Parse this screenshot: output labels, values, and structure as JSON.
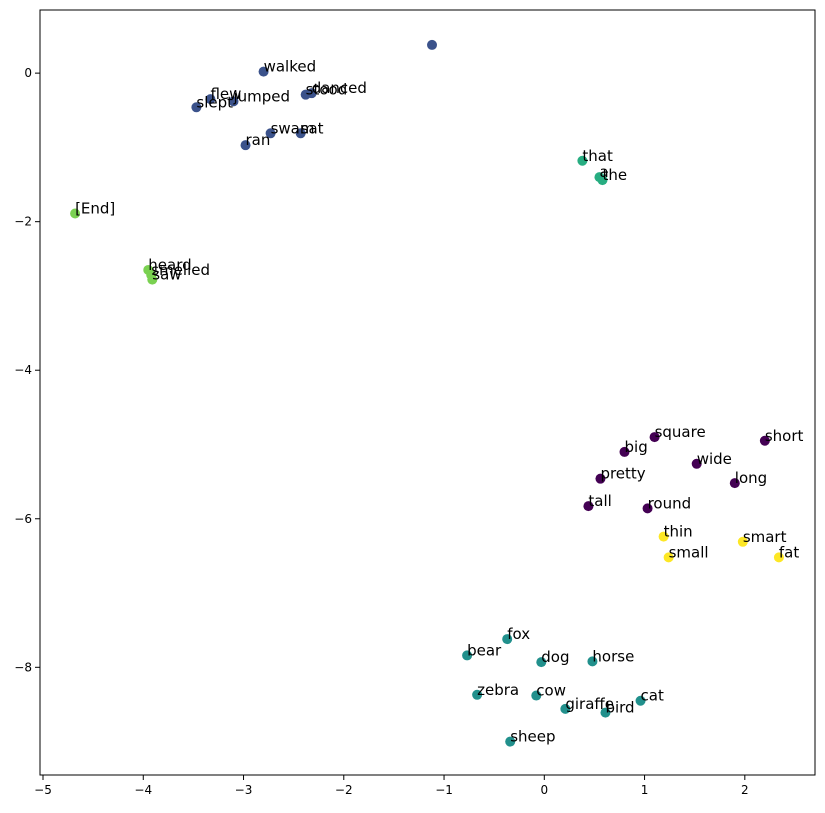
{
  "chart_data": {
    "type": "scatter",
    "title": "",
    "xlabel": "",
    "ylabel": "",
    "xlim": [
      -5.03,
      2.7
    ],
    "ylim": [
      -9.45,
      0.85
    ],
    "xticks": [
      -5,
      -4,
      -3,
      -2,
      -1,
      0,
      1,
      2
    ],
    "yticks": [
      -8,
      -6,
      -4,
      -2,
      0
    ],
    "xtick_labels": [
      "−5",
      "−4",
      "−3",
      "−2",
      "−1",
      "0",
      "1",
      "2"
    ],
    "ytick_labels": [
      "−8",
      "−6",
      "−4",
      "−2",
      "0"
    ],
    "grid": false,
    "legend": "none",
    "colors": {
      "cluster_adjective": "#440154",
      "cluster_verb": "#3b528b",
      "cluster_animal": "#21908c",
      "cluster_article": "#27ad81",
      "cluster_end": "#7ad151",
      "cluster_size": "#fde725"
    },
    "points": [
      {
        "label": "",
        "x": -1.12,
        "y": 0.38,
        "cluster": "cluster_verb"
      },
      {
        "label": "walked",
        "x": -2.8,
        "y": 0.02,
        "cluster": "cluster_verb"
      },
      {
        "label": "flew",
        "x": -3.33,
        "y": -0.35,
        "cluster": "cluster_verb"
      },
      {
        "label": "jumped",
        "x": -3.1,
        "y": -0.38,
        "cluster": "cluster_verb"
      },
      {
        "label": "slept",
        "x": -3.47,
        "y": -0.46,
        "cluster": "cluster_verb"
      },
      {
        "label": "stood",
        "x": -2.38,
        "y": -0.29,
        "cluster": "cluster_verb"
      },
      {
        "label": "danced",
        "x": -2.32,
        "y": -0.27,
        "cluster": "cluster_verb"
      },
      {
        "label": "swam",
        "x": -2.73,
        "y": -0.81,
        "cluster": "cluster_verb"
      },
      {
        "label": "sat",
        "x": -2.43,
        "y": -0.81,
        "cluster": "cluster_verb"
      },
      {
        "label": "ran",
        "x": -2.98,
        "y": -0.97,
        "cluster": "cluster_verb"
      },
      {
        "label": "that",
        "x": 0.38,
        "y": -1.18,
        "cluster": "cluster_article"
      },
      {
        "label": "a",
        "x": 0.55,
        "y": -1.4,
        "cluster": "cluster_article"
      },
      {
        "label": "the",
        "x": 0.58,
        "y": -1.44,
        "cluster": "cluster_article"
      },
      {
        "label": "[End]",
        "x": -4.68,
        "y": -1.89,
        "cluster": "cluster_end"
      },
      {
        "label": "heard",
        "x": -3.95,
        "y": -2.65,
        "cluster": "cluster_end"
      },
      {
        "label": "smelled",
        "x": -3.92,
        "y": -2.72,
        "cluster": "cluster_end"
      },
      {
        "label": "saw",
        "x": -3.91,
        "y": -2.78,
        "cluster": "cluster_end"
      },
      {
        "label": "square",
        "x": 1.1,
        "y": -4.9,
        "cluster": "cluster_adjective"
      },
      {
        "label": "short",
        "x": 2.2,
        "y": -4.95,
        "cluster": "cluster_adjective"
      },
      {
        "label": "big",
        "x": 0.8,
        "y": -5.1,
        "cluster": "cluster_adjective"
      },
      {
        "label": "wide",
        "x": 1.52,
        "y": -5.26,
        "cluster": "cluster_adjective"
      },
      {
        "label": "pretty",
        "x": 0.56,
        "y": -5.46,
        "cluster": "cluster_adjective"
      },
      {
        "label": "long",
        "x": 1.9,
        "y": -5.52,
        "cluster": "cluster_adjective"
      },
      {
        "label": "tall",
        "x": 0.44,
        "y": -5.83,
        "cluster": "cluster_adjective"
      },
      {
        "label": "round",
        "x": 1.03,
        "y": -5.86,
        "cluster": "cluster_adjective"
      },
      {
        "label": "thin",
        "x": 1.19,
        "y": -6.24,
        "cluster": "cluster_size"
      },
      {
        "label": "smart",
        "x": 1.98,
        "y": -6.31,
        "cluster": "cluster_size"
      },
      {
        "label": "small",
        "x": 1.24,
        "y": -6.52,
        "cluster": "cluster_size"
      },
      {
        "label": "fat",
        "x": 2.34,
        "y": -6.52,
        "cluster": "cluster_size"
      },
      {
        "label": "fox",
        "x": -0.37,
        "y": -7.62,
        "cluster": "cluster_animal"
      },
      {
        "label": "bear",
        "x": -0.77,
        "y": -7.84,
        "cluster": "cluster_animal"
      },
      {
        "label": "dog",
        "x": -0.03,
        "y": -7.93,
        "cluster": "cluster_animal"
      },
      {
        "label": "horse",
        "x": 0.48,
        "y": -7.92,
        "cluster": "cluster_animal"
      },
      {
        "label": "zebra",
        "x": -0.67,
        "y": -8.37,
        "cluster": "cluster_animal"
      },
      {
        "label": "cow",
        "x": -0.08,
        "y": -8.38,
        "cluster": "cluster_animal"
      },
      {
        "label": "cat",
        "x": 0.96,
        "y": -8.45,
        "cluster": "cluster_animal"
      },
      {
        "label": "giraffe",
        "x": 0.21,
        "y": -8.56,
        "cluster": "cluster_animal"
      },
      {
        "label": "bird",
        "x": 0.61,
        "y": -8.61,
        "cluster": "cluster_animal"
      },
      {
        "label": "sheep",
        "x": -0.34,
        "y": -9.0,
        "cluster": "cluster_animal"
      }
    ]
  }
}
